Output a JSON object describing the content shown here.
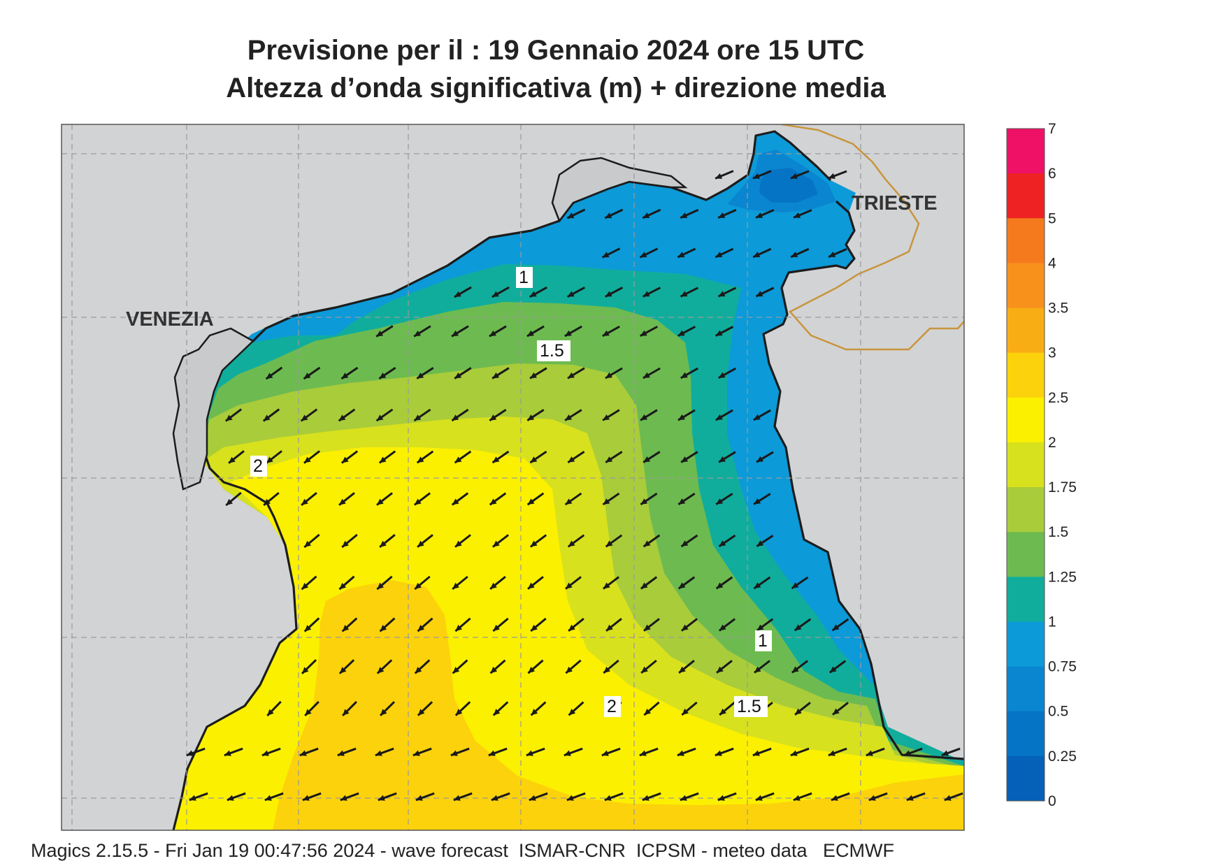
{
  "title_line1": "Previsione per il  :  19  Gennaio  2024   ore 15 UTC",
  "title_line2": "Altezza d’onda significativa (m) + direzione media",
  "footer": "Magics 2.15.5 - Fri Jan 19 00:47:56 2024 - wave forecast  ISMAR-CNR  ICPSM - meteo data   ECMWF",
  "cities": {
    "venezia": "VENEZIA",
    "trieste": "TRIESTE"
  },
  "contour_labels": [
    "1",
    "1.5",
    "2",
    "1",
    "1.5",
    "2"
  ],
  "legend": {
    "labels": [
      "7",
      "6",
      "5",
      "4",
      "3.5",
      "3",
      "2.5",
      "2",
      "1.75",
      "1.5",
      "1.25",
      "1",
      "0.75",
      "0.5",
      "0.25",
      "0"
    ],
    "colors": [
      "#ee1166",
      "#ee2222",
      "#f57a1e",
      "#f7911c",
      "#f9ad15",
      "#fcd20c",
      "#fbf000",
      "#d8e11e",
      "#a9cc3a",
      "#6dbb50",
      "#11ad9c",
      "#0c9ad8",
      "#0a86d0",
      "#0674c4",
      "#0560b8"
    ]
  },
  "colors": {
    "land": "#d2d3d5",
    "coast": "#1c1c1c",
    "border": "#c8953c",
    "arrow": "#1a1a1a"
  },
  "wave_direction_from": "north-east"
}
